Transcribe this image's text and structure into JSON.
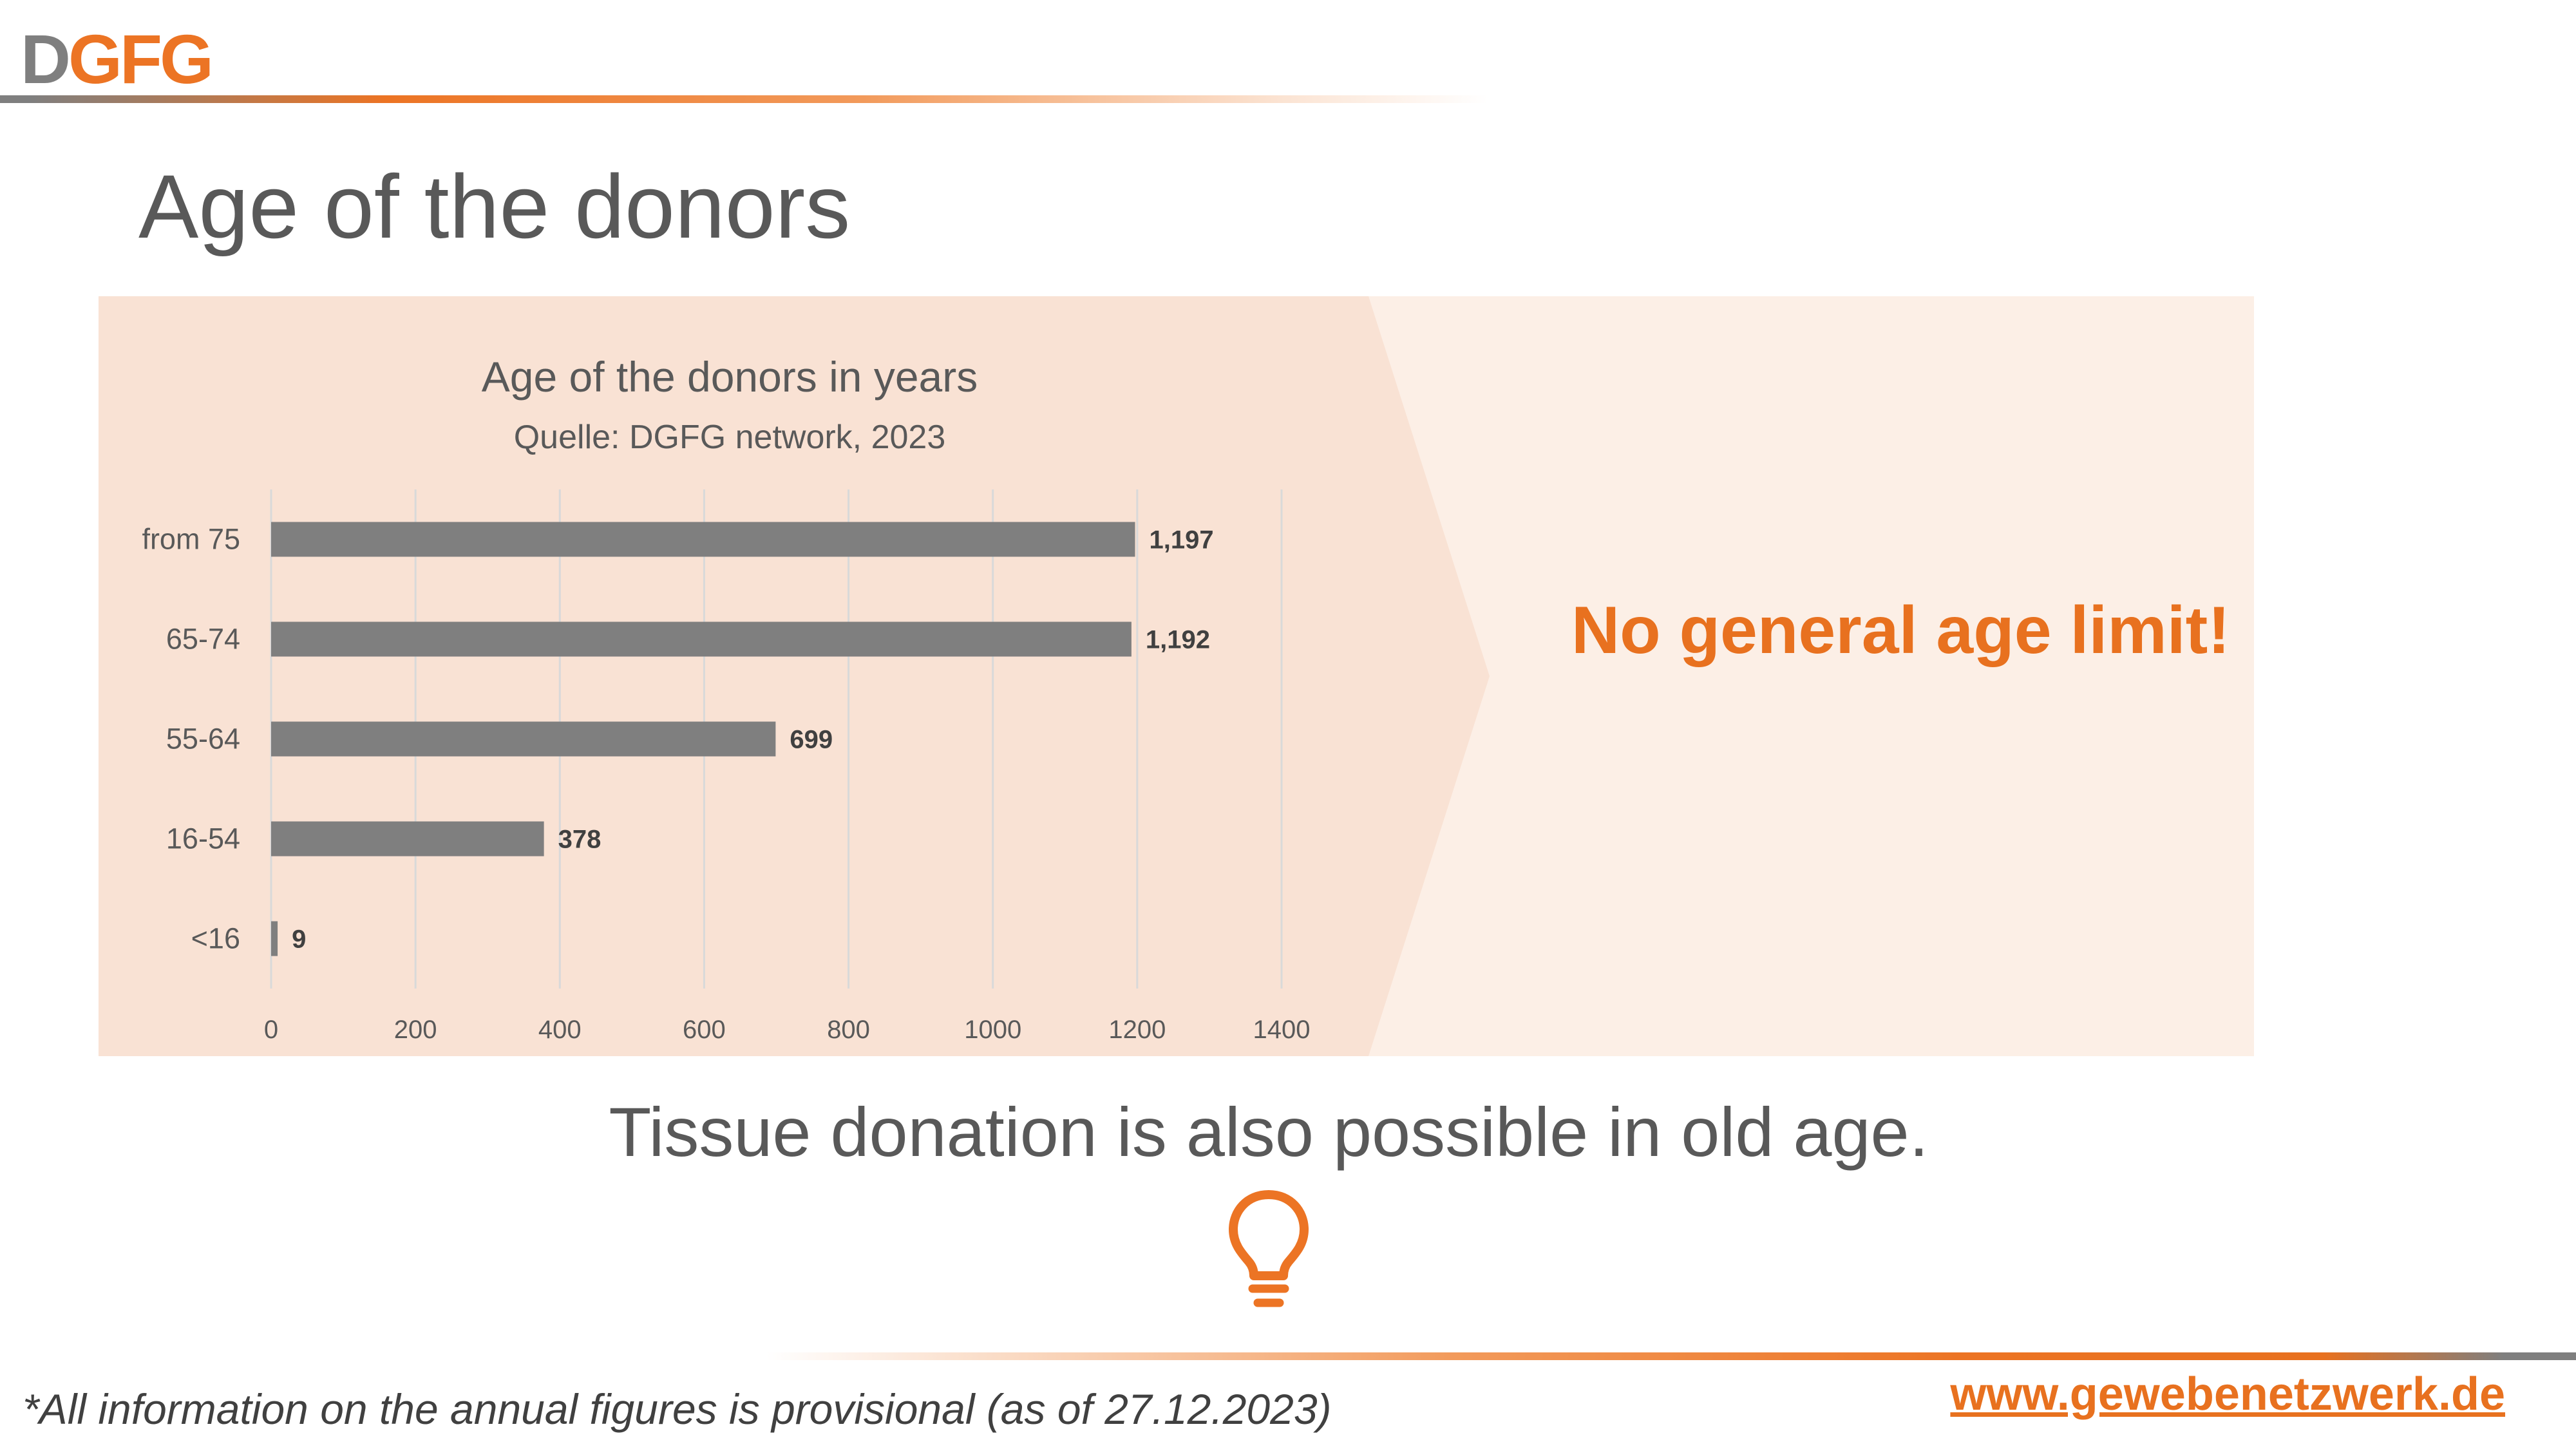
{
  "logo": {
    "part1": "D",
    "part2": "GFG"
  },
  "page_title": "Age of the donors",
  "headline": "No general age limit!",
  "tagline": "Tissue donation is also possible in old age.",
  "footnote": "*All information on the annual figures is provisional (as of 27.12.2023)",
  "website": "www.gewebenetzwerk.de",
  "icons": {
    "bulb": "lightbulb-icon"
  },
  "colors": {
    "accent": "#e8711f",
    "bar": "#7f7f7f",
    "panel": "#f9e2d4",
    "panel_light": "#fcefe6"
  },
  "chart_data": {
    "type": "bar",
    "orientation": "horizontal",
    "title": "Age of the donors in years",
    "subtitle": "Quelle: DGFG network, 2023",
    "categories": [
      "from 75",
      "65-74",
      "55-64",
      "16-54",
      "<16"
    ],
    "values": [
      1197,
      1192,
      699,
      378,
      9
    ],
    "data_labels": [
      "1,197",
      "1,192",
      "699",
      "378",
      "9"
    ],
    "xlim": [
      0,
      1400
    ],
    "xticks": [
      0,
      200,
      400,
      600,
      800,
      1000,
      1200,
      1400
    ],
    "grid": true,
    "legend": "none"
  }
}
